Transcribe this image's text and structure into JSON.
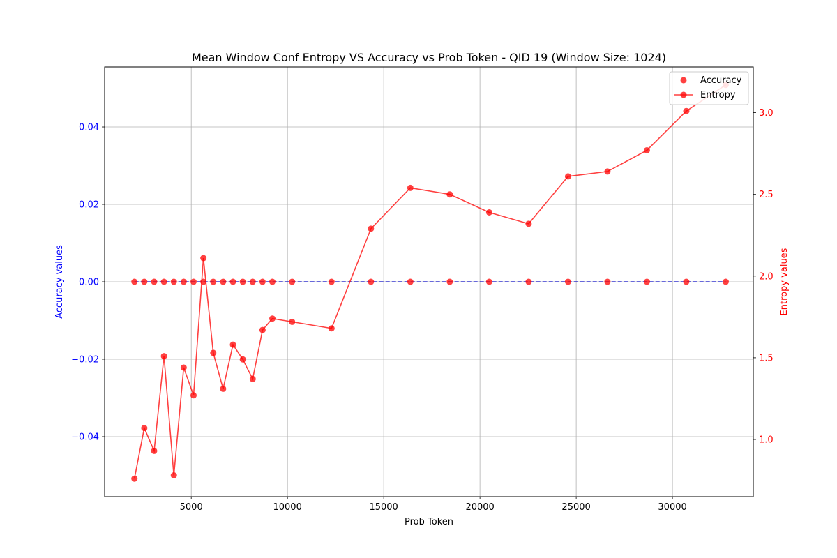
{
  "chart_data": {
    "type": "line",
    "title": "Mean Window Conf Entropy VS Accuracy vs Prob Token - QID 19 (Window Size: 1024)",
    "xlabel": "Prob Token",
    "ylabel_left": "Accuracy values",
    "ylabel_right": "Entropy values",
    "xlim": [
      500,
      34200
    ],
    "ylim_left": [
      -0.0555,
      0.0555
    ],
    "ylim_right": [
      0.65,
      3.28
    ],
    "x_ticks": [
      5000,
      10000,
      15000,
      20000,
      25000,
      30000
    ],
    "y_left_ticks": [
      -0.04,
      -0.02,
      0.0,
      0.02,
      0.04
    ],
    "y_right_ticks": [
      1.0,
      1.5,
      2.0,
      2.5,
      3.0
    ],
    "x_tick_labels": [
      "5000",
      "10000",
      "15000",
      "20000",
      "25000",
      "30000"
    ],
    "y_left_tick_labels": [
      "−0.04",
      "−0.02",
      "0.00",
      "0.02",
      "0.04"
    ],
    "y_right_tick_labels": [
      "1.0",
      "1.5",
      "2.0",
      "2.5",
      "3.0"
    ],
    "grid": true,
    "legend_position": "top-right",
    "x": [
      2048,
      2560,
      3072,
      3584,
      4096,
      4608,
      5120,
      5632,
      6144,
      6656,
      7168,
      7680,
      8192,
      8704,
      9216,
      10240,
      12288,
      14336,
      16384,
      18432,
      20480,
      22528,
      24576,
      26624,
      28672,
      30720,
      32768
    ],
    "series": [
      {
        "name": "Accuracy",
        "axis": "left",
        "color": "#ff0000",
        "line_color": "#0000cc",
        "style": "scatter + dashed line",
        "values": [
          0,
          0,
          0,
          0,
          0,
          0,
          0,
          0,
          0,
          0,
          0,
          0,
          0,
          0,
          0,
          0,
          0,
          0,
          0,
          0,
          0,
          0,
          0,
          0,
          0,
          0,
          0
        ]
      },
      {
        "name": "Entropy",
        "axis": "right",
        "color": "#ff0000",
        "style": "line + markers",
        "values": [
          0.76,
          1.07,
          0.93,
          1.51,
          0.78,
          1.44,
          1.27,
          2.11,
          1.53,
          1.31,
          1.58,
          1.49,
          1.37,
          1.67,
          1.74,
          1.72,
          1.68,
          2.29,
          2.54,
          2.5,
          2.39,
          2.32,
          2.61,
          2.64,
          2.77,
          3.01,
          3.17
        ]
      }
    ]
  }
}
